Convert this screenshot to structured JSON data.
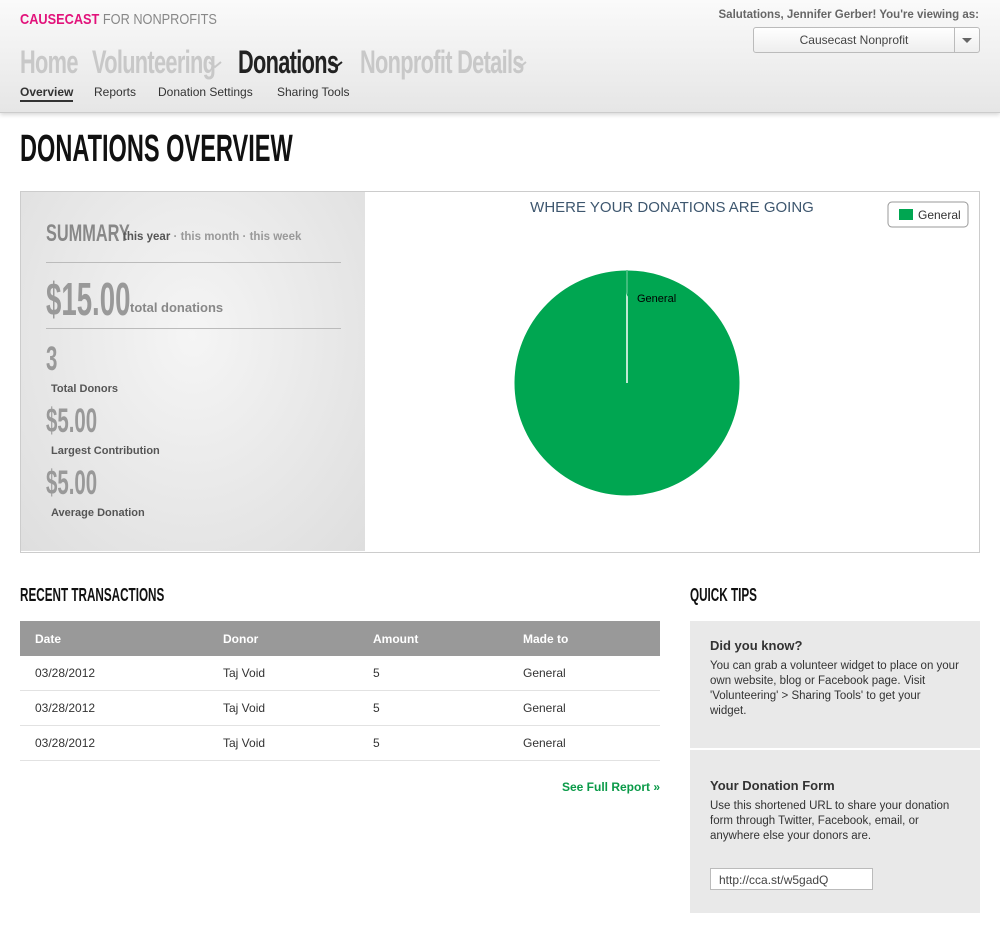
{
  "header": {
    "brand": "CAUSECAST",
    "brand_suffix": "FOR NONPROFITS",
    "greeting": "Salutations, Jennifer Gerber! You're viewing as:",
    "account_select": "Causecast Nonprofit"
  },
  "nav": {
    "tabs": [
      "Home",
      "Volunteering",
      "Donations",
      "Nonprofit Details"
    ],
    "subtabs": [
      "Overview",
      "Reports",
      "Donation Settings",
      "Sharing Tools"
    ]
  },
  "page_title": "DONATIONS OVERVIEW",
  "summary": {
    "title": "SUMMARY",
    "periods": [
      "this year",
      "this month",
      "this week"
    ],
    "separator": "·",
    "total": "$15.00",
    "total_label": "total donations",
    "stats": [
      {
        "value": "3",
        "label": "Total Donors"
      },
      {
        "value": "$5.00",
        "label": "Largest Contribution"
      },
      {
        "value": "$5.00",
        "label": "Average Donation"
      }
    ]
  },
  "chart_data": {
    "type": "pie",
    "title": "WHERE YOUR DONATIONS ARE GOING",
    "categories": [
      "General"
    ],
    "values": [
      15
    ],
    "colors": [
      "#00a651"
    ],
    "legend": "top-right"
  },
  "transactions": {
    "title": "RECENT TRANSACTIONS",
    "columns": [
      "Date",
      "Donor",
      "Amount",
      "Made to"
    ],
    "rows": [
      [
        "03/28/2012",
        "Taj Void",
        "5",
        "General"
      ],
      [
        "03/28/2012",
        "Taj Void",
        "5",
        "General"
      ],
      [
        "03/28/2012",
        "Taj Void",
        "5",
        "General"
      ]
    ],
    "link": "See Full Report »"
  },
  "tips": {
    "title": "QUICK TIPS",
    "items": [
      {
        "heading": "Did you know?",
        "body": "You can grab a volunteer widget to place on your own website, blog or Facebook page. Visit 'Volunteering' > Sharing Tools' to get your widget."
      },
      {
        "heading": "Your Donation Form",
        "body": "Use this shortened URL to share your donation form through Twitter, Facebook, email, or anywhere else your donors are.",
        "input": "http://cca.st/w5gadQ"
      }
    ]
  }
}
